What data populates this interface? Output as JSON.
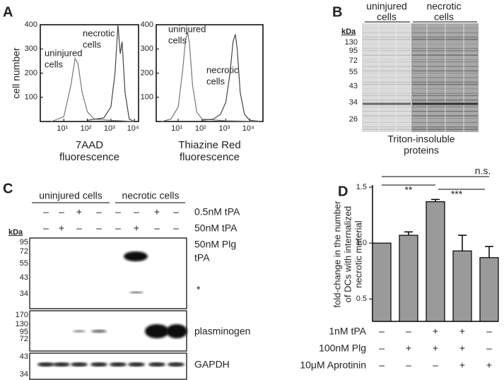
{
  "panel_labels": [
    "A",
    "B",
    "C",
    "D"
  ],
  "chart_data": [
    {
      "type": "line",
      "ylabel": "cell number",
      "xlabel": [
        "7AAD",
        "fluorescence"
      ],
      "xlog": true,
      "xlim": [
        1,
        15000
      ],
      "ylim": [
        0,
        400
      ],
      "xticks": [
        {
          "value": 10,
          "label": "10¹"
        },
        {
          "value": 100,
          "label": "10²"
        },
        {
          "value": 1000,
          "label": "10³"
        },
        {
          "value": 10000,
          "label": "10⁴"
        }
      ],
      "yticks": [
        100,
        200,
        300,
        400
      ],
      "annotations": [
        [
          "uninjured",
          "cells"
        ],
        [
          "necrotic",
          "cells"
        ]
      ],
      "series": [
        {
          "color": "#777777",
          "x": [
            3,
            10,
            20,
            30,
            40,
            60,
            100,
            200,
            1000,
            10000
          ],
          "values": [
            0,
            20,
            150,
            260,
            240,
            120,
            40,
            10,
            5,
            0
          ]
        },
        {
          "color": "#444444",
          "x": [
            100,
            500,
            1000,
            1500,
            2000,
            2500,
            3000,
            4000,
            6000,
            10000
          ],
          "values": [
            5,
            15,
            60,
            200,
            400,
            280,
            330,
            120,
            10,
            0
          ]
        }
      ]
    },
    {
      "type": "line",
      "xlabel": [
        "Thiazine Red",
        "fluorescence"
      ],
      "xlog": true,
      "xlim": [
        1.2,
        36000
      ],
      "ylim": [
        0,
        400
      ],
      "xticks": [
        {
          "value": 10,
          "label": "10¹"
        },
        {
          "value": 100,
          "label": "10²"
        },
        {
          "value": 1000,
          "label": "10³"
        },
        {
          "value": 10000,
          "label": "10⁴"
        }
      ],
      "yticks": [
        100,
        200,
        300,
        400
      ],
      "annotations": [
        [
          "uninjured",
          "cells"
        ],
        [
          "necrotic",
          "cells"
        ]
      ],
      "series": [
        {
          "color": "#777777",
          "x": [
            2,
            5,
            10,
            15,
            20,
            25,
            30,
            40,
            60,
            100,
            1000,
            30000
          ],
          "values": [
            0,
            10,
            60,
            200,
            330,
            370,
            320,
            150,
            40,
            10,
            3,
            0
          ]
        },
        {
          "color": "#444444",
          "x": [
            100,
            300,
            600,
            1000,
            1500,
            2000,
            2500,
            3000,
            4000,
            6000,
            10000,
            30000
          ],
          "values": [
            5,
            10,
            30,
            80,
            200,
            330,
            360,
            300,
            120,
            30,
            5,
            0
          ]
        }
      ]
    },
    {
      "type": "bar",
      "ylabel": [
        "fold-change in the number",
        "of DCs with internalized",
        "necrotic material"
      ],
      "categories": [
        null,
        null,
        null,
        null,
        null
      ],
      "values": [
        1.0,
        1.07,
        1.37,
        0.93,
        0.87
      ],
      "errors": [
        0,
        0.03,
        0.02,
        0.14,
        0.1
      ],
      "color": "#9a9a9a",
      "ylim": [
        0.3,
        1.5
      ],
      "yticks": [
        0.5,
        {
          "value": 1,
          "label": "1.0"
        },
        1.5
      ],
      "annotations": [
        "n.s.",
        "**",
        "***"
      ],
      "treatments": [
        {
          "label": "1nM tPA",
          "signs": [
            "–",
            "–",
            "+",
            "+",
            "–"
          ]
        },
        {
          "label": "100nM Plg",
          "signs": [
            "–",
            "+",
            "+",
            "+",
            "–"
          ]
        },
        {
          "label": "10μM Aprotinin",
          "signs": [
            "–",
            "–",
            "–",
            "+",
            "+"
          ]
        }
      ]
    }
  ],
  "gel": {
    "groups": [
      [
        "uninjured",
        "cells"
      ],
      [
        "necrotic",
        "cells"
      ]
    ],
    "kda": "kDa",
    "markers": [
      130,
      95,
      72,
      55,
      43,
      34,
      26
    ],
    "caption": [
      "Triton-insoluble",
      "proteins"
    ]
  },
  "blot": {
    "groups": [
      "uninjured cells",
      "necrotic cells"
    ],
    "treatments": [
      {
        "label": "0.5nM tPA",
        "signs": [
          "–",
          "–",
          "+",
          "–",
          "–",
          "–",
          "+",
          "–"
        ]
      },
      {
        "label": "50nM tPA",
        "signs": [
          "–",
          "+",
          "–",
          "–",
          "–",
          "+",
          "–",
          "–"
        ]
      },
      {
        "label": "50nM Plg",
        "signs": [
          "–",
          "–",
          "+",
          "+",
          "–",
          "–",
          "+",
          "+"
        ]
      }
    ],
    "kda": "kDa",
    "panels": [
      {
        "label": "tPA",
        "note": "*",
        "markers": [
          95,
          72,
          55,
          43,
          34
        ]
      },
      {
        "label": "plasminogen",
        "markers": [
          170,
          130,
          95,
          72
        ]
      },
      {
        "label": "GAPDH",
        "markers": [
          43,
          34
        ]
      }
    ]
  }
}
